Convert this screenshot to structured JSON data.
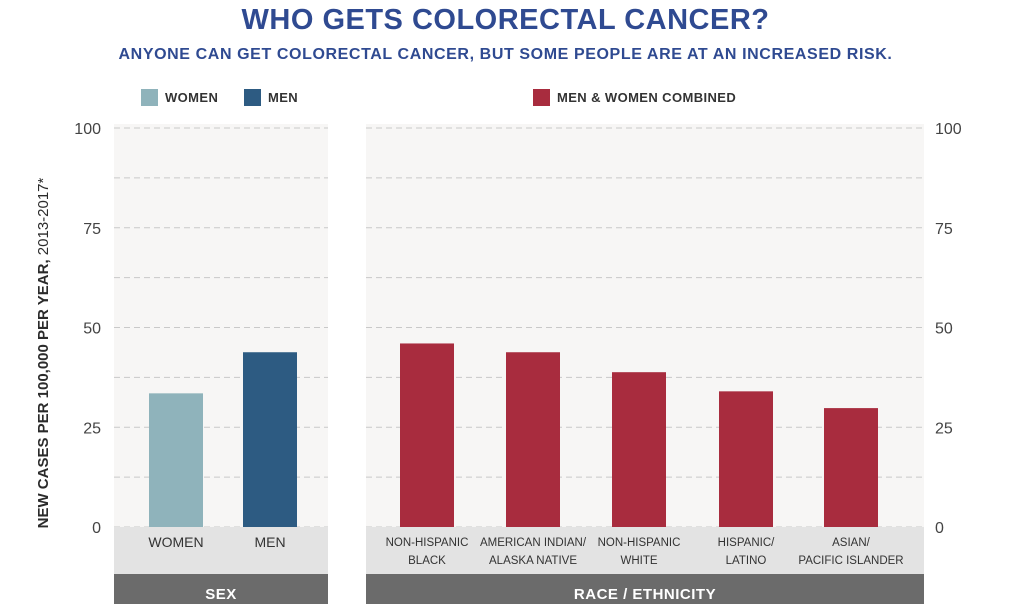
{
  "title": "WHO GETS COLORECTAL CANCER?",
  "subtitle": "ANYONE CAN GET COLORECTAL CANCER, BUT SOME PEOPLE ARE AT AN INCREASED RISK.",
  "colors": {
    "title": "#2f4a91",
    "women": "#8fb3bb",
    "men": "#2d5b82",
    "combined": "#a82c3e",
    "panel_bg": "#f7f6f5",
    "category_band": "#e3e3e3",
    "group_band": "#6b6b6b"
  },
  "legend": {
    "women": "WOMEN",
    "men": "MEN",
    "combined": "MEN & WOMEN COMBINED"
  },
  "chart_data": {
    "type": "bar",
    "title": "WHO GETS COLORECTAL CANCER?",
    "ylabel_bold": "NEW CASES PER 100,000 PER YEAR,",
    "ylabel_regular": " 2013-2017*",
    "ylim": [
      0,
      100
    ],
    "yticks": [
      "0",
      "25",
      "50",
      "75",
      "100"
    ],
    "ytick_values": [
      0,
      25,
      50,
      75,
      100
    ],
    "grid": true,
    "panels": [
      {
        "group_label": "SEX",
        "bars": [
          {
            "label": [
              "WOMEN"
            ],
            "value": 33.5,
            "series": "women"
          },
          {
            "label": [
              "MEN"
            ],
            "value": 43.8,
            "series": "men"
          }
        ]
      },
      {
        "group_label": "RACE / ETHNICITY",
        "bars": [
          {
            "label": [
              "NON-HISPANIC",
              "BLACK"
            ],
            "value": 46.0,
            "series": "combined"
          },
          {
            "label": [
              "AMERICAN INDIAN/",
              "ALASKA NATIVE"
            ],
            "value": 43.8,
            "series": "combined"
          },
          {
            "label": [
              "NON-HISPANIC",
              "WHITE"
            ],
            "value": 38.8,
            "series": "combined"
          },
          {
            "label": [
              "HISPANIC/",
              "LATINO"
            ],
            "value": 34.0,
            "series": "combined"
          },
          {
            "label": [
              "ASIAN/",
              "PACIFIC ISLANDER"
            ],
            "value": 29.8,
            "series": "combined"
          }
        ]
      }
    ]
  }
}
